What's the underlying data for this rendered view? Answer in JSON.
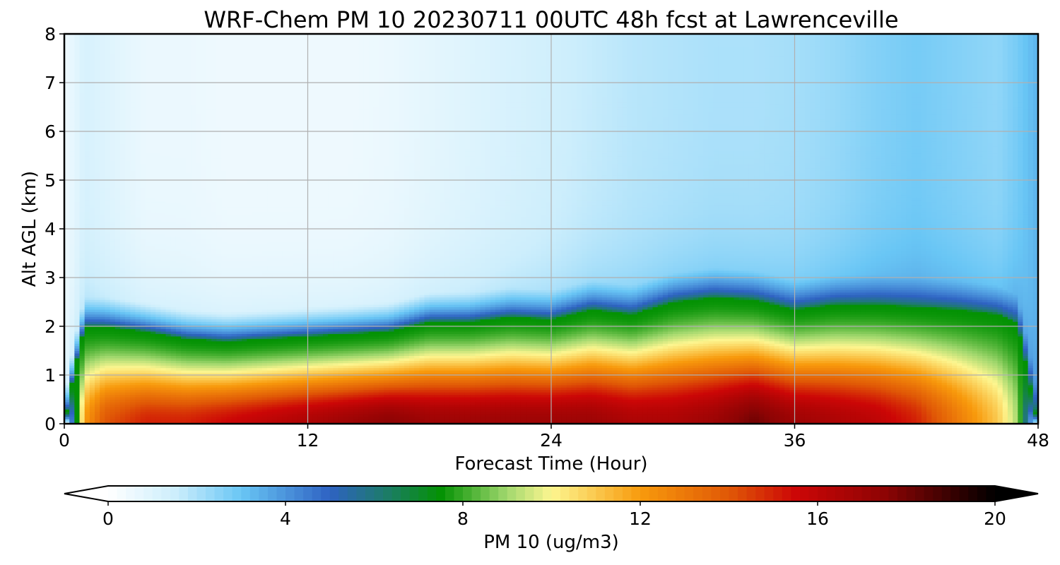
{
  "chart_data": {
    "type": "heatmap",
    "title": "WRF-Chem PM 10  20230711 00UTC 48h fcst at Lawrenceville",
    "xlabel": "Forecast Time (Hour)",
    "ylabel": "Alt AGL (km)",
    "xlim": [
      0,
      48
    ],
    "ylim": [
      0,
      8
    ],
    "xticks": [
      0,
      12,
      24,
      36,
      48
    ],
    "yticks": [
      0,
      1,
      2,
      3,
      4,
      5,
      6,
      7,
      8
    ],
    "grid": true,
    "colorbar": {
      "label": "PM 10  (ug/m3)",
      "range": [
        0,
        20
      ],
      "ticks": [
        0,
        4,
        8,
        12,
        16,
        20
      ],
      "extend": "both",
      "stops": [
        {
          "v": 0,
          "c": "#ffffff"
        },
        {
          "v": 1.5,
          "c": "#cdeefc"
        },
        {
          "v": 3,
          "c": "#69c6f5"
        },
        {
          "v": 5,
          "c": "#2e62c2"
        },
        {
          "v": 6.2,
          "c": "#1e7a6e"
        },
        {
          "v": 7.5,
          "c": "#049204"
        },
        {
          "v": 9,
          "c": "#a2d86e"
        },
        {
          "v": 10,
          "c": "#fdf690"
        },
        {
          "v": 12,
          "c": "#f89a0c"
        },
        {
          "v": 14,
          "c": "#e05806"
        },
        {
          "v": 15.5,
          "c": "#cc0606"
        },
        {
          "v": 17.5,
          "c": "#8e0404"
        },
        {
          "v": 20,
          "c": "#000000"
        }
      ]
    },
    "x": [
      0,
      0.5,
      1,
      2,
      4,
      6,
      8,
      10,
      12,
      14,
      16,
      18,
      20,
      22,
      24,
      26,
      28,
      30,
      32,
      34,
      36,
      38,
      40,
      42,
      44,
      46,
      47,
      48
    ],
    "pbl_top_km": [
      0,
      1.1,
      2.0,
      2.0,
      1.9,
      1.75,
      1.7,
      1.75,
      1.8,
      1.85,
      1.9,
      2.1,
      2.1,
      2.2,
      2.15,
      2.35,
      2.25,
      2.5,
      2.6,
      2.55,
      2.35,
      2.45,
      2.45,
      2.4,
      2.35,
      2.25,
      2.05,
      0
    ],
    "near_surface_ug_m3": [
      0,
      6,
      12,
      14,
      15,
      15,
      15.5,
      16,
      16.5,
      17,
      17.5,
      17,
      17,
      17,
      17,
      17,
      16.5,
      16.5,
      17,
      18,
      17,
      16.5,
      16,
      15,
      13,
      11,
      9,
      1
    ],
    "upper_air_ug_m3": [
      0.5,
      0.8,
      1.2,
      1.0,
      0.6,
      0.6,
      0.5,
      0.5,
      0.5,
      0.5,
      0.6,
      0.8,
      1.0,
      1.2,
      1.4,
      1.6,
      1.8,
      1.9,
      2.0,
      2.0,
      2.1,
      2.3,
      2.6,
      2.8,
      2.6,
      2.4,
      2.8,
      3.4
    ]
  }
}
